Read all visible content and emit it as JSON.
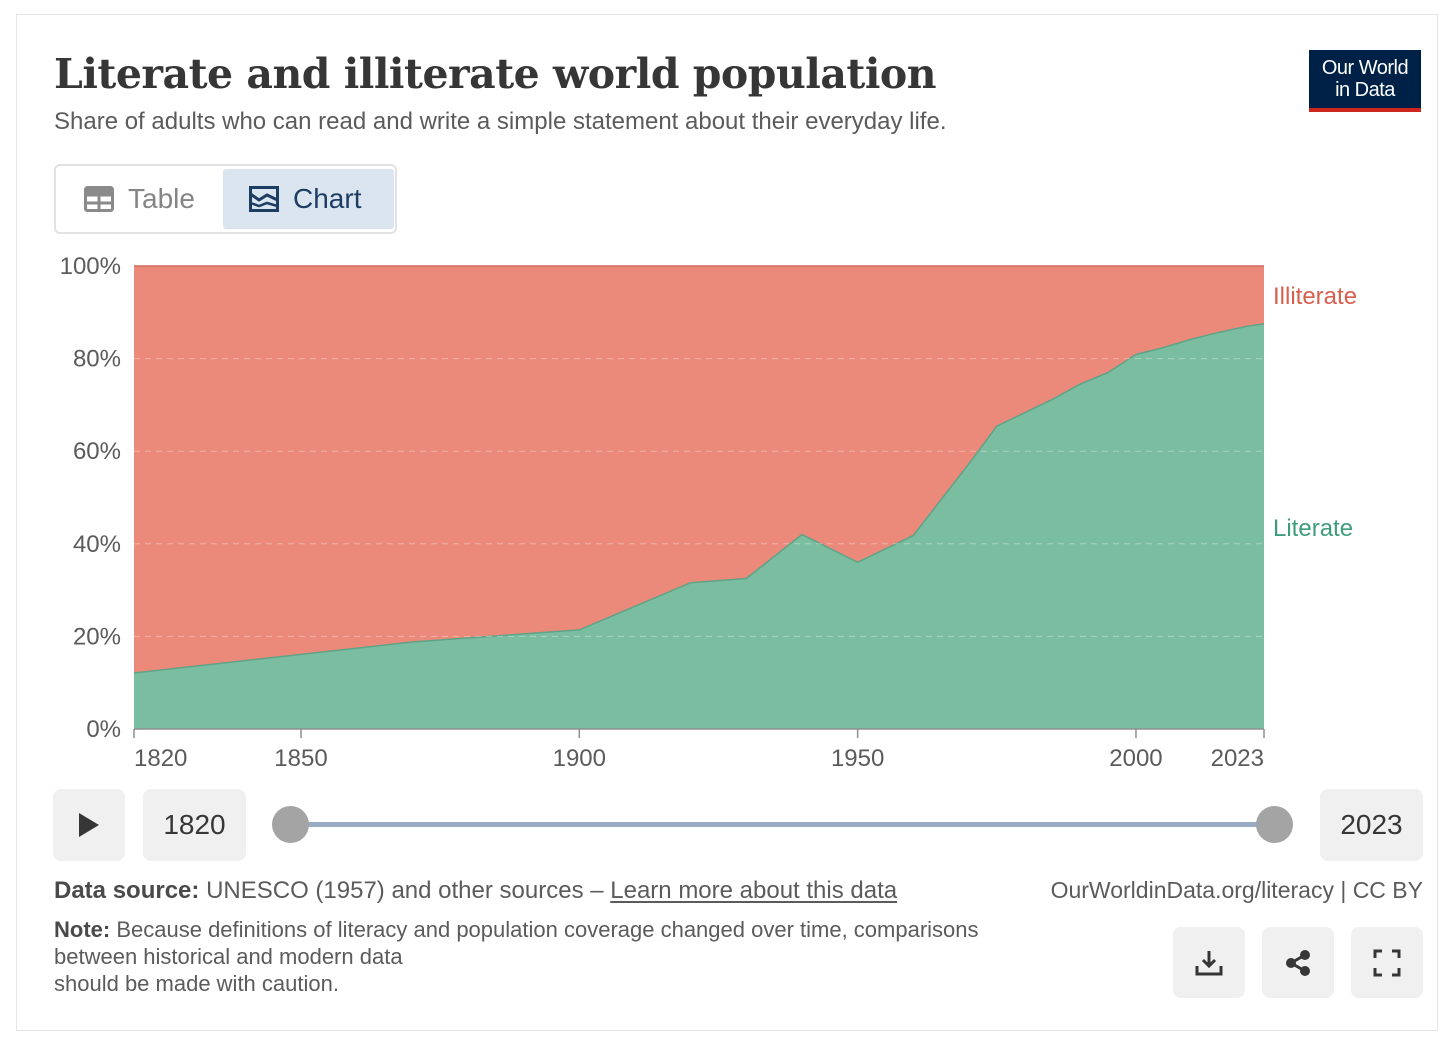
{
  "header": {
    "title": "Literate and illiterate world population",
    "subtitle": "Share of adults who can read and write a simple statement about their everyday life.",
    "logo_line1": "Our World",
    "logo_line2": "in Data"
  },
  "tabs": [
    {
      "label": "Table",
      "icon": "table-icon",
      "active": false
    },
    {
      "label": "Chart",
      "icon": "chart-icon",
      "active": true
    }
  ],
  "colors": {
    "illiterate": "#eb8a7b",
    "literate": "#7bbda1",
    "illiterate_label": "#d65f4e",
    "literate_label": "#3f9c7b",
    "logo_bg": "#002147",
    "logo_accent": "#ce261e"
  },
  "chart_data": {
    "type": "area",
    "stacked": true,
    "title": "Literate and illiterate world population",
    "xlabel": "",
    "ylabel": "",
    "xlim": [
      1820,
      2023
    ],
    "ylim": [
      0,
      100
    ],
    "x_ticks": [
      1820,
      1850,
      1900,
      1950,
      2000,
      2023
    ],
    "y_ticks": [
      0,
      20,
      40,
      60,
      80,
      100
    ],
    "y_tick_labels": [
      "0%",
      "20%",
      "40%",
      "60%",
      "80%",
      "100%"
    ],
    "grid": true,
    "series": [
      {
        "name": "Literate",
        "x": [
          1820,
          1870,
          1900,
          1920,
          1930,
          1940,
          1950,
          1960,
          1970,
          1975,
          1985,
          1990,
          1995,
          2000,
          2005,
          2010,
          2015,
          2020,
          2023
        ],
        "values": [
          12.1,
          18.8,
          21.4,
          31.6,
          32.5,
          42.0,
          36.0,
          41.8,
          57.3,
          65.4,
          71.2,
          74.5,
          77.0,
          80.9,
          82.4,
          84.2,
          85.7,
          87.0,
          87.5
        ]
      },
      {
        "name": "Illiterate",
        "x": [
          1820,
          1870,
          1900,
          1920,
          1930,
          1940,
          1950,
          1960,
          1970,
          1975,
          1985,
          1990,
          1995,
          2000,
          2005,
          2010,
          2015,
          2020,
          2023
        ],
        "values": [
          87.9,
          81.2,
          78.6,
          68.4,
          67.5,
          58.0,
          64.0,
          58.2,
          42.7,
          34.6,
          28.8,
          25.5,
          23.0,
          19.1,
          17.6,
          15.8,
          14.3,
          13.0,
          12.5
        ]
      }
    ]
  },
  "timeline": {
    "start_year": "1820",
    "end_year": "2023"
  },
  "footer": {
    "source_label": "Data source:",
    "source_text": "UNESCO (1957) and other sources – ",
    "source_link": "Learn more about this data",
    "credit": "OurWorldinData.org/literacy | CC BY",
    "note_label": "Note:",
    "note_line1": "Because definitions of literacy and population coverage changed over time, comparisons",
    "note_line2": "between historical and modern data",
    "note_line3": "should be made with caution."
  }
}
